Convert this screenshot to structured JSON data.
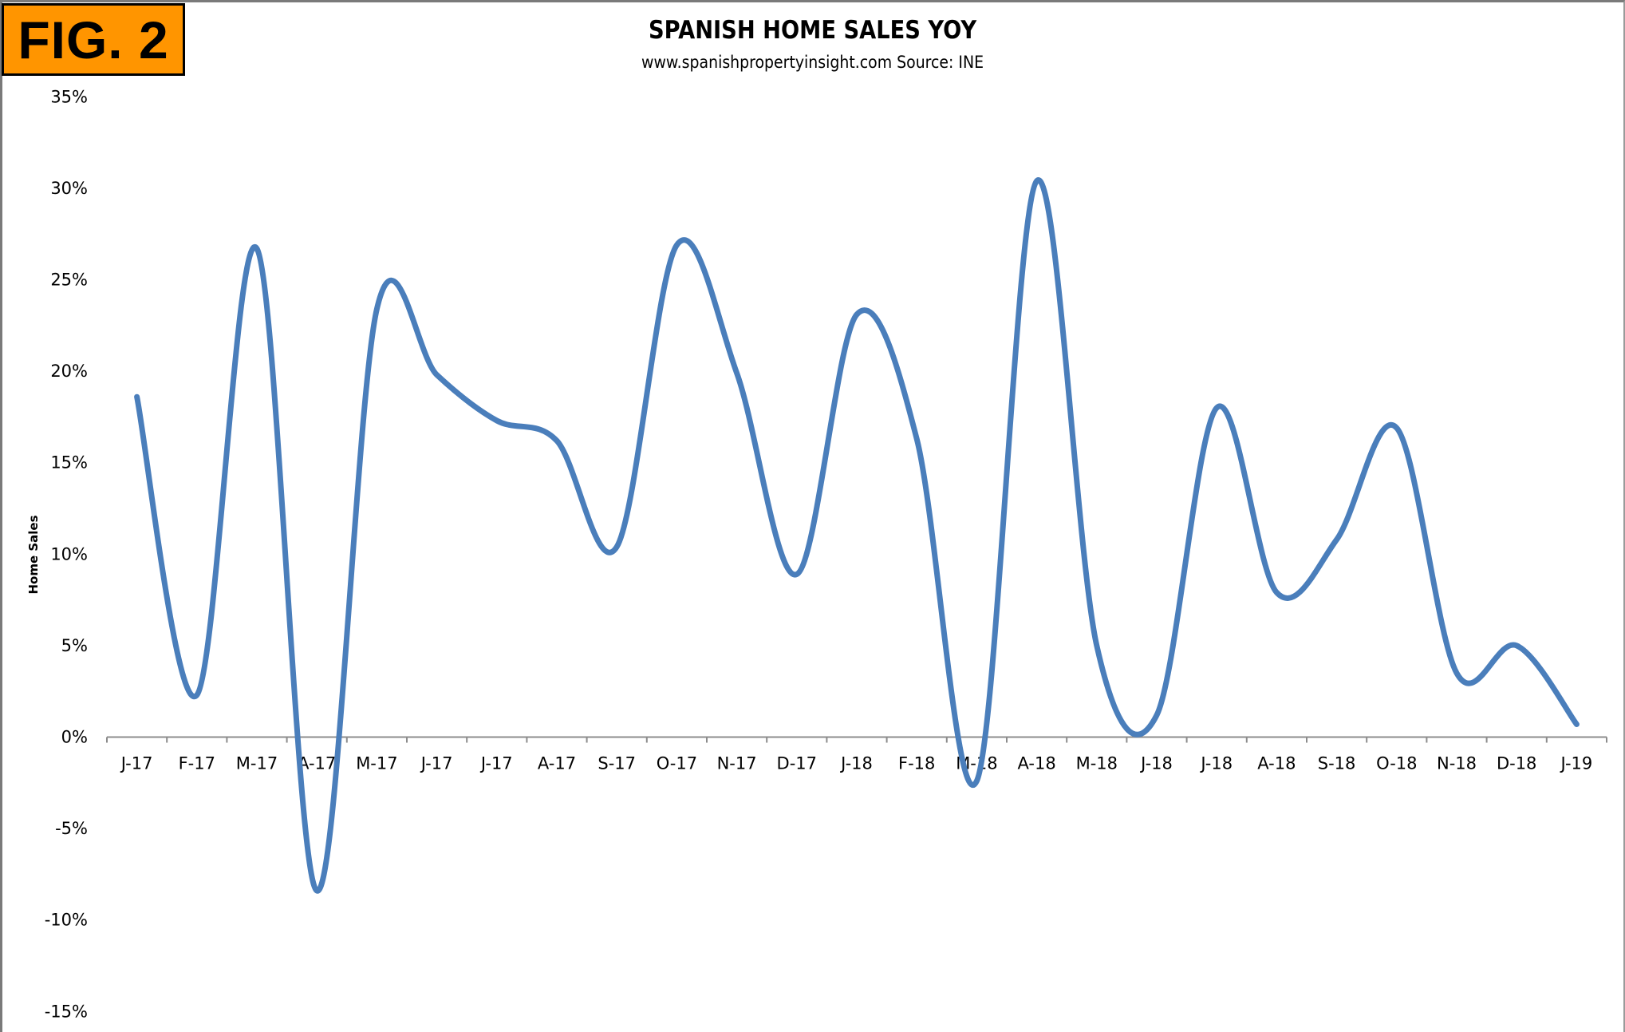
{
  "badge": {
    "label": "FIG. 2",
    "color": "#ff9500"
  },
  "chart_data": {
    "type": "line",
    "title": "SPANISH HOME SALES YOY",
    "subtitle": "www.spanishpropertyinsight.com Source: INE",
    "xlabel": "",
    "ylabel": "Home Sales",
    "ylim": [
      -15,
      35
    ],
    "y_ticks": [
      "35%",
      "30%",
      "25%",
      "20%",
      "15%",
      "10%",
      "5%",
      "0%",
      "-5%",
      "-10%",
      "-15%"
    ],
    "y_tick_values": [
      35,
      30,
      25,
      20,
      15,
      10,
      5,
      0,
      -5,
      -10,
      -15
    ],
    "grid": false,
    "legend": null,
    "smoothed": true,
    "line_color": "#4a7ebb",
    "categories": [
      "J-17",
      "F-17",
      "M-17",
      "A-17",
      "M-17",
      "J-17",
      "J-17",
      "A-17",
      "S-17",
      "O-17",
      "N-17",
      "D-17",
      "J-18",
      "F-18",
      "M-18",
      "A-18",
      "M-18",
      "J-18",
      "J-18",
      "A-18",
      "S-18",
      "O-18",
      "N-18",
      "D-18",
      "J-19"
    ],
    "series": [
      {
        "name": "Home Sales YOY",
        "values": [
          18.6,
          2.3,
          26.7,
          -8.4,
          23.4,
          19.8,
          17.3,
          16.2,
          10.4,
          26.9,
          19.9,
          8.9,
          23.1,
          16.3,
          -2.4,
          30.4,
          5.0,
          1.2,
          18.0,
          7.9,
          10.8,
          16.9,
          3.5,
          5.0,
          0.7
        ]
      }
    ]
  }
}
